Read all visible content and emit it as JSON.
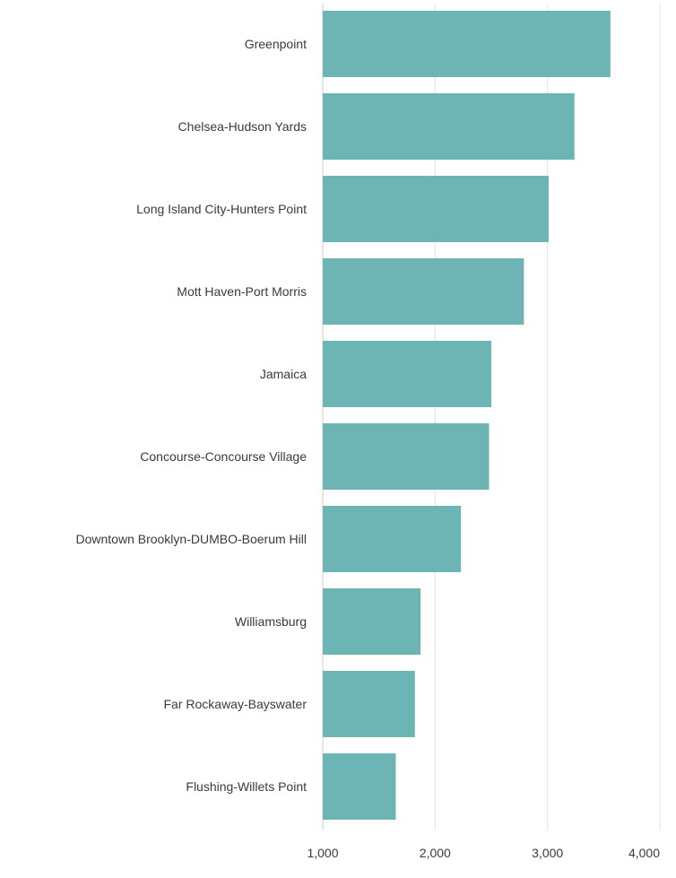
{
  "chart_data": {
    "type": "bar",
    "orientation": "horizontal",
    "title": "",
    "xlabel": "",
    "ylabel": "",
    "categories": [
      "Greenpoint",
      "Chelsea-Hudson Yards",
      "Long Island City-Hunters Point",
      "Mott Haven-Port Morris",
      "Jamaica",
      "Concourse-Concourse Village",
      "Downtown Brooklyn-DUMBO-Boerum Hill",
      "Williamsburg",
      "Far Rockaway-Bayswater",
      "Flushing-Willets Point"
    ],
    "values": [
      3560,
      3240,
      3010,
      2790,
      2500,
      2480,
      2230,
      1870,
      1820,
      1650
    ],
    "xlim": [
      1000,
      4000
    ],
    "ticks": [
      1000,
      2000,
      3000,
      4000
    ],
    "tick_labels": [
      "1,000",
      "2,000",
      "3,000",
      "4,000"
    ],
    "grid": "vertical",
    "legend": "none",
    "colors": {
      "bar": "#6db5b5",
      "grid": "#e3e3e3",
      "axis": "#cccccc",
      "text": "#3a3a3a"
    }
  }
}
